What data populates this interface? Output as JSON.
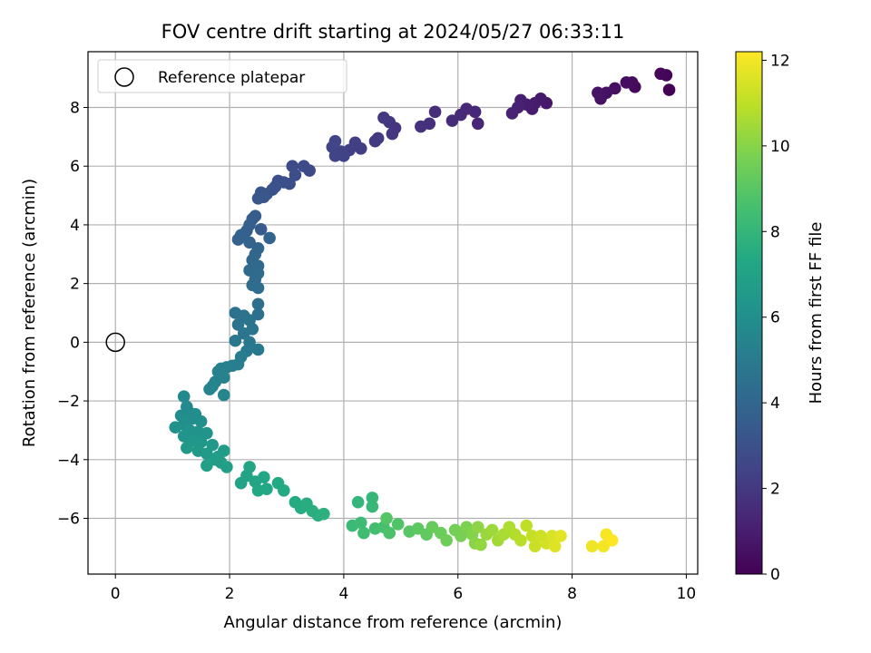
{
  "chart_data": {
    "type": "scatter",
    "title": "FOV centre drift starting at 2024/05/27 06:33:11",
    "xlabel": "Angular distance from reference (arcmin)",
    "ylabel": "Rotation from reference (arcmin)",
    "xlim": [
      -0.48,
      10.2
    ],
    "ylim": [
      -7.9,
      9.9
    ],
    "xticks": [
      0,
      2,
      4,
      6,
      8,
      10
    ],
    "yticks": [
      -6,
      -4,
      -2,
      0,
      2,
      4,
      6,
      8
    ],
    "grid": true,
    "legend": {
      "placement": "top-left",
      "entries": [
        "Reference platepar"
      ]
    },
    "reference_point": {
      "x": 0,
      "y": 0,
      "label": "Reference platepar"
    },
    "colorbar": {
      "label": "Hours from first FF file",
      "range": [
        0,
        12.2
      ],
      "ticks": [
        0,
        2,
        4,
        6,
        8,
        10,
        12
      ],
      "colormap": "viridis"
    },
    "series": [
      {
        "color_by": "hours",
        "points": [
          [
            9.7,
            8.6,
            0.0
          ],
          [
            9.65,
            9.1,
            0.1
          ],
          [
            9.55,
            9.15,
            0.2
          ],
          [
            9.1,
            8.7,
            0.3
          ],
          [
            9.05,
            8.85,
            0.35
          ],
          [
            8.95,
            8.85,
            0.4
          ],
          [
            8.75,
            8.65,
            0.5
          ],
          [
            8.6,
            8.5,
            0.55
          ],
          [
            8.5,
            8.3,
            0.6
          ],
          [
            8.45,
            8.5,
            0.65
          ],
          [
            7.55,
            8.15,
            0.8
          ],
          [
            7.45,
            8.3,
            0.85
          ],
          [
            7.35,
            8.15,
            0.9
          ],
          [
            7.3,
            7.95,
            0.95
          ],
          [
            7.2,
            8.1,
            1.0
          ],
          [
            7.1,
            8.25,
            1.05
          ],
          [
            7.05,
            8.0,
            1.1
          ],
          [
            6.95,
            7.8,
            1.15
          ],
          [
            6.35,
            7.45,
            1.3
          ],
          [
            6.3,
            7.85,
            1.35
          ],
          [
            6.15,
            7.95,
            1.4
          ],
          [
            6.05,
            7.75,
            1.45
          ],
          [
            5.9,
            7.55,
            1.5
          ],
          [
            5.6,
            7.85,
            1.6
          ],
          [
            5.5,
            7.45,
            1.65
          ],
          [
            5.35,
            7.35,
            1.7
          ],
          [
            4.9,
            7.3,
            1.85
          ],
          [
            4.85,
            7.1,
            1.9
          ],
          [
            4.8,
            7.5,
            1.95
          ],
          [
            4.7,
            7.65,
            2.0
          ],
          [
            4.6,
            6.95,
            2.05
          ],
          [
            4.55,
            6.85,
            2.1
          ],
          [
            4.3,
            6.6,
            2.2
          ],
          [
            4.2,
            6.8,
            2.25
          ],
          [
            4.1,
            6.55,
            2.3
          ],
          [
            4.0,
            6.35,
            2.35
          ],
          [
            3.95,
            6.5,
            2.4
          ],
          [
            3.85,
            6.35,
            2.45
          ],
          [
            3.8,
            6.65,
            2.5
          ],
          [
            3.85,
            6.85,
            2.55
          ],
          [
            3.4,
            5.85,
            2.7
          ],
          [
            3.3,
            6.0,
            2.75
          ],
          [
            3.1,
            6.0,
            2.8
          ],
          [
            3.15,
            5.7,
            2.85
          ],
          [
            3.05,
            5.4,
            2.9
          ],
          [
            2.95,
            5.45,
            2.95
          ],
          [
            2.85,
            5.5,
            3.0
          ],
          [
            2.8,
            5.3,
            3.05
          ],
          [
            2.75,
            5.2,
            3.1
          ],
          [
            2.65,
            5.05,
            3.15
          ],
          [
            2.55,
            5.1,
            3.2
          ],
          [
            2.5,
            4.9,
            3.25
          ],
          [
            2.6,
            4.95,
            3.3
          ],
          [
            2.55,
            3.85,
            3.5
          ],
          [
            2.45,
            4.3,
            3.55
          ],
          [
            2.4,
            4.2,
            3.6
          ],
          [
            2.35,
            4.0,
            3.65
          ],
          [
            2.3,
            3.8,
            3.7
          ],
          [
            2.2,
            3.65,
            3.75
          ],
          [
            2.15,
            3.5,
            3.8
          ],
          [
            2.35,
            3.4,
            3.85
          ],
          [
            2.7,
            3.55,
            3.9
          ],
          [
            2.5,
            3.2,
            3.95
          ],
          [
            2.45,
            3.0,
            4.0
          ],
          [
            2.4,
            2.8,
            4.05
          ],
          [
            2.5,
            2.6,
            4.1
          ],
          [
            2.35,
            2.45,
            4.15
          ],
          [
            2.5,
            2.35,
            4.2
          ],
          [
            2.45,
            2.15,
            4.25
          ],
          [
            2.4,
            1.95,
            4.3
          ],
          [
            2.5,
            1.85,
            4.35
          ],
          [
            2.5,
            1.3,
            4.45
          ],
          [
            2.5,
            0.95,
            4.5
          ],
          [
            2.1,
            1.0,
            4.55
          ],
          [
            2.25,
            0.9,
            4.6
          ],
          [
            2.35,
            0.75,
            4.65
          ],
          [
            2.15,
            0.6,
            4.7
          ],
          [
            2.4,
            0.45,
            4.75
          ],
          [
            2.25,
            0.3,
            4.8
          ],
          [
            2.1,
            0.05,
            4.85
          ],
          [
            2.35,
            0.0,
            4.9
          ],
          [
            2.5,
            -0.25,
            4.95
          ],
          [
            2.3,
            -0.3,
            5.0
          ],
          [
            2.2,
            -0.5,
            5.05
          ],
          [
            2.15,
            -0.75,
            5.1
          ],
          [
            2.05,
            -0.8,
            5.15
          ],
          [
            1.95,
            -0.85,
            5.2
          ],
          [
            1.85,
            -0.9,
            5.25
          ],
          [
            1.8,
            -1.0,
            5.3
          ],
          [
            1.9,
            -1.2,
            5.35
          ],
          [
            1.75,
            -1.35,
            5.4
          ],
          [
            1.7,
            -1.5,
            5.45
          ],
          [
            1.65,
            -1.6,
            5.5
          ],
          [
            1.9,
            -1.8,
            5.55
          ],
          [
            1.2,
            -1.85,
            5.7
          ],
          [
            1.25,
            -2.2,
            5.75
          ],
          [
            1.3,
            -2.4,
            5.8
          ],
          [
            1.4,
            -2.45,
            5.85
          ],
          [
            1.15,
            -2.5,
            5.9
          ],
          [
            1.35,
            -2.6,
            5.95
          ],
          [
            1.5,
            -2.7,
            6.0
          ],
          [
            1.2,
            -2.8,
            6.05
          ],
          [
            1.05,
            -2.9,
            6.1
          ],
          [
            1.3,
            -3.0,
            6.15
          ],
          [
            1.45,
            -3.05,
            6.2
          ],
          [
            1.6,
            -3.1,
            6.25
          ],
          [
            1.2,
            -3.2,
            6.3
          ],
          [
            1.35,
            -3.35,
            6.35
          ],
          [
            1.5,
            -3.4,
            6.4
          ],
          [
            1.7,
            -3.5,
            6.45
          ],
          [
            1.25,
            -3.6,
            6.5
          ],
          [
            1.45,
            -3.7,
            6.55
          ],
          [
            1.6,
            -3.8,
            6.6
          ],
          [
            1.8,
            -3.9,
            6.65
          ],
          [
            1.9,
            -3.7,
            6.7
          ],
          [
            1.75,
            -4.0,
            6.75
          ],
          [
            1.85,
            -4.1,
            6.8
          ],
          [
            1.6,
            -4.2,
            6.85
          ],
          [
            1.95,
            -4.25,
            6.9
          ],
          [
            2.2,
            -4.8,
            7.0
          ],
          [
            2.3,
            -4.55,
            7.05
          ],
          [
            2.35,
            -4.25,
            7.1
          ],
          [
            2.45,
            -4.75,
            7.15
          ],
          [
            2.6,
            -4.6,
            7.2
          ],
          [
            2.5,
            -5.05,
            7.25
          ],
          [
            2.65,
            -5.0,
            7.3
          ],
          [
            2.85,
            -4.8,
            7.35
          ],
          [
            2.95,
            -5.05,
            7.4
          ],
          [
            3.15,
            -5.45,
            7.45
          ],
          [
            3.25,
            -5.65,
            7.5
          ],
          [
            3.35,
            -5.5,
            7.55
          ],
          [
            3.45,
            -5.75,
            7.6
          ],
          [
            3.55,
            -5.9,
            7.65
          ],
          [
            3.65,
            -5.85,
            7.7
          ],
          [
            4.25,
            -5.45,
            8.0
          ],
          [
            4.5,
            -5.3,
            8.05
          ],
          [
            4.5,
            -5.6,
            8.1
          ],
          [
            4.15,
            -6.25,
            8.2
          ],
          [
            4.3,
            -6.15,
            8.3
          ],
          [
            4.35,
            -6.5,
            8.4
          ],
          [
            4.55,
            -6.35,
            8.5
          ],
          [
            4.7,
            -6.3,
            8.6
          ],
          [
            4.8,
            -6.5,
            8.7
          ],
          [
            4.95,
            -6.2,
            8.8
          ],
          [
            4.75,
            -6.0,
            8.9
          ],
          [
            5.15,
            -6.45,
            9.0
          ],
          [
            5.3,
            -6.35,
            9.1
          ],
          [
            5.45,
            -6.55,
            9.2
          ],
          [
            5.55,
            -6.3,
            9.3
          ],
          [
            5.7,
            -6.5,
            9.4
          ],
          [
            5.8,
            -6.75,
            9.5
          ],
          [
            5.95,
            -6.4,
            9.6
          ],
          [
            6.05,
            -6.6,
            9.7
          ],
          [
            6.15,
            -6.3,
            9.8
          ],
          [
            6.25,
            -6.55,
            9.9
          ],
          [
            6.3,
            -6.85,
            10.0
          ],
          [
            6.35,
            -6.3,
            10.1
          ],
          [
            6.4,
            -6.9,
            10.2
          ],
          [
            6.5,
            -6.55,
            10.3
          ],
          [
            6.6,
            -6.4,
            10.4
          ],
          [
            6.7,
            -6.75,
            10.5
          ],
          [
            6.8,
            -6.55,
            10.6
          ],
          [
            6.9,
            -6.3,
            10.7
          ],
          [
            7.0,
            -6.55,
            10.8
          ],
          [
            7.1,
            -6.75,
            10.9
          ],
          [
            7.2,
            -6.25,
            11.0
          ],
          [
            7.3,
            -6.6,
            11.1
          ],
          [
            7.35,
            -6.95,
            11.2
          ],
          [
            7.45,
            -6.6,
            11.3
          ],
          [
            7.55,
            -6.85,
            11.4
          ],
          [
            7.65,
            -6.6,
            11.5
          ],
          [
            7.7,
            -6.95,
            11.6
          ],
          [
            7.8,
            -6.6,
            11.7
          ],
          [
            8.35,
            -6.95,
            11.9
          ],
          [
            8.55,
            -6.95,
            12.0
          ],
          [
            8.6,
            -6.55,
            12.1
          ],
          [
            8.7,
            -6.75,
            12.2
          ]
        ]
      }
    ]
  }
}
